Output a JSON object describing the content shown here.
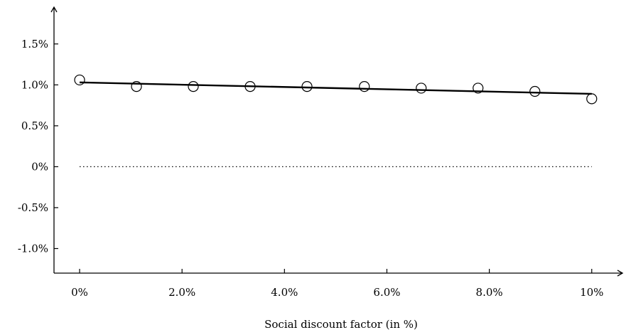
{
  "chart_data": {
    "type": "scatter",
    "title": "",
    "xlabel": "Social discount factor (in %)",
    "ylabel": "",
    "xlim": [
      -5,
      106
    ],
    "ylim": [
      -1.3,
      1.95
    ],
    "x_ticks": [
      {
        "value": 0,
        "label": "0%"
      },
      {
        "value": 20,
        "label": "2.0%"
      },
      {
        "value": 40,
        "label": "4.0%"
      },
      {
        "value": 60,
        "label": "6.0%"
      },
      {
        "value": 80,
        "label": "8.0%"
      },
      {
        "value": 100,
        "label": "10%"
      }
    ],
    "y_ticks": [
      {
        "value": -1.0,
        "label": "-1.0%"
      },
      {
        "value": -0.5,
        "label": "-0.5%"
      },
      {
        "value": 0,
        "label": "0%"
      },
      {
        "value": 0.5,
        "label": "0.5%"
      },
      {
        "value": 1.0,
        "label": "1.0%"
      },
      {
        "value": 1.5,
        "label": "1.5%"
      }
    ],
    "grid": false,
    "legend": "none",
    "series": [
      {
        "type": "scatter",
        "marker": "open-circle",
        "x": [
          0,
          11.1,
          22.2,
          33.3,
          44.4,
          55.6,
          66.7,
          77.8,
          88.9,
          100
        ],
        "y": [
          1.06,
          0.98,
          0.98,
          0.98,
          0.98,
          0.98,
          0.96,
          0.96,
          0.92,
          0.83
        ]
      },
      {
        "type": "line",
        "x": [
          0,
          100
        ],
        "y": [
          1.03,
          0.89
        ]
      }
    ],
    "reference_line": {
      "y": 0,
      "style": "dotted",
      "x_from": 0,
      "x_to": 100
    }
  }
}
